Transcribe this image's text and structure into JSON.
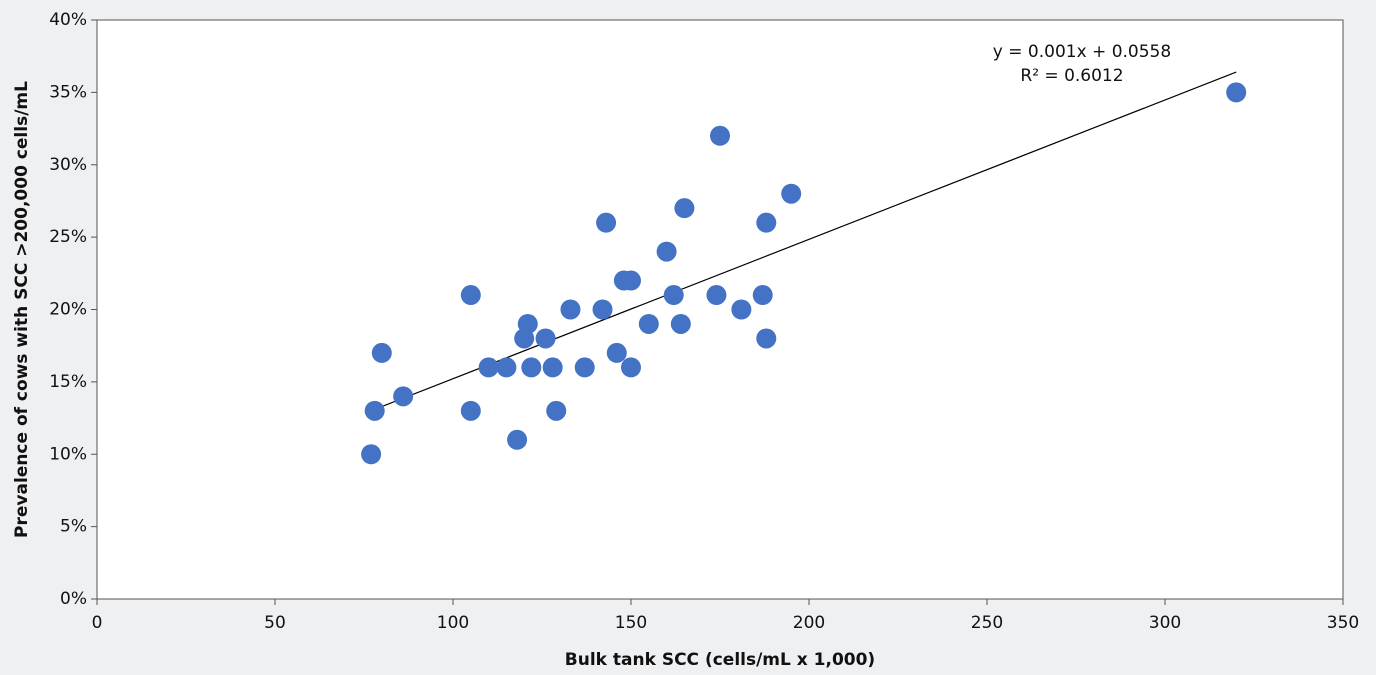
{
  "chart_data": {
    "type": "scatter",
    "xlabel": "Bulk tank SCC (cells/mL x 1,000)",
    "ylabel": "Prevalence of cows with SCC >200,000 cells/mL",
    "xlim": [
      0,
      350
    ],
    "xticks": [
      0,
      50,
      100,
      150,
      200,
      250,
      300,
      350
    ],
    "ylim": [
      0,
      40
    ],
    "yticks": [
      {
        "value": 0,
        "label": "0%"
      },
      {
        "value": 5,
        "label": "5%"
      },
      {
        "value": 10,
        "label": "10%"
      },
      {
        "value": 15,
        "label": "15%"
      },
      {
        "value": 20,
        "label": "20%"
      },
      {
        "value": 25,
        "label": "25%"
      },
      {
        "value": 30,
        "label": "30%"
      },
      {
        "value": 35,
        "label": "35%"
      },
      {
        "value": 40,
        "label": "40%"
      }
    ],
    "color": "#4472c4",
    "x": [
      77,
      78,
      80,
      86,
      105,
      105,
      110,
      115,
      118,
      120,
      121,
      122,
      126,
      128,
      129,
      133,
      137,
      142,
      143,
      146,
      148,
      150,
      150,
      155,
      160,
      162,
      164,
      165,
      175,
      174,
      181,
      187,
      188,
      188,
      195,
      320
    ],
    "values": [
      10,
      13,
      17,
      14,
      21,
      13,
      16,
      16,
      11,
      18,
      19,
      16,
      18,
      16,
      13,
      20,
      16,
      20,
      26,
      17,
      22,
      22,
      16,
      19,
      24,
      21,
      19,
      27,
      32,
      21,
      20,
      21,
      26,
      18,
      28,
      35
    ],
    "trendline": {
      "x": [
        78,
        320
      ],
      "values": [
        13.1,
        36.4
      ]
    },
    "annotations": [
      "y = 0.001x + 0.0558",
      "R² = 0.6012"
    ]
  }
}
